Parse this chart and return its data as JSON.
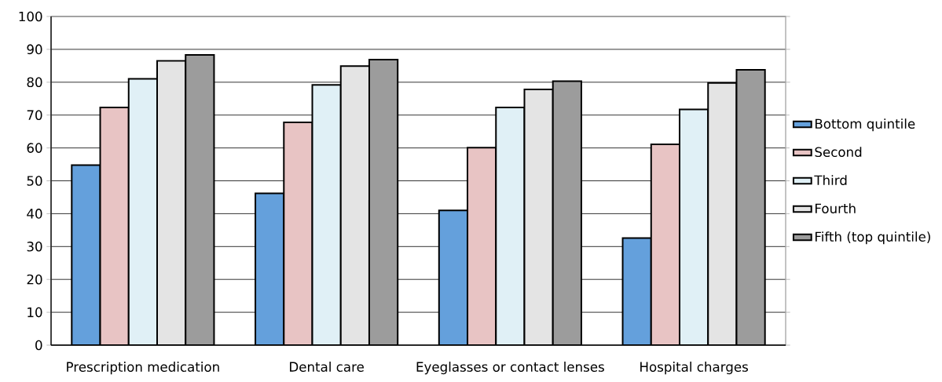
{
  "chart_data": {
    "type": "bar",
    "categories": [
      "Prescription medication",
      "Dental care",
      "Eyeglasses or contact lenses",
      "Hospital charges"
    ],
    "series": [
      {
        "name": "Bottom quintile",
        "color": "#64a0dc",
        "values": [
          54.8,
          46.2,
          41,
          32.6
        ]
      },
      {
        "name": "Second",
        "color": "#e8c4c4",
        "values": [
          72.3,
          67.8,
          60.1,
          61.1
        ]
      },
      {
        "name": "Third",
        "color": "#e0f0f6",
        "values": [
          81,
          79.2,
          72.3,
          71.7
        ]
      },
      {
        "name": "Fourth",
        "color": "#e4e4e4",
        "values": [
          86.5,
          84.9,
          77.8,
          79.8
        ]
      },
      {
        "name": "Fifth (top quintile)",
        "color": "#9c9c9c",
        "values": [
          88.3,
          86.9,
          80.3,
          83.8
        ]
      }
    ],
    "ylim": [
      0,
      100
    ],
    "yticks": [
      0,
      10,
      20,
      30,
      40,
      50,
      60,
      70,
      80,
      90,
      100
    ],
    "grid": "y",
    "legend": "right"
  }
}
